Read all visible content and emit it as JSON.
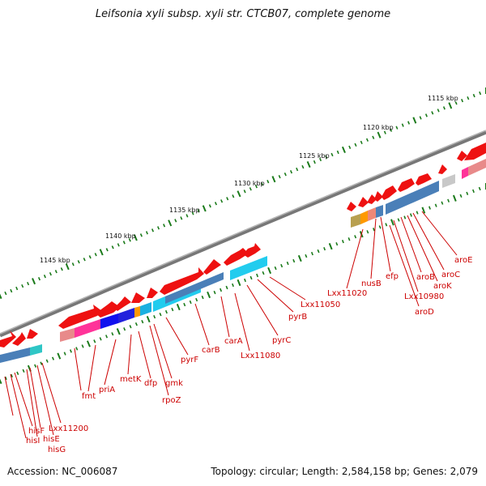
{
  "title": "Leifsonia xyli subsp. xyli str. CTCB07, complete genome",
  "footer": {
    "accession": "Accession: NC_006087",
    "summary": "Topology: circular; Length: 2,584,158 bp; Genes: 2,079"
  },
  "colors": {
    "backbone": "#8a8a8a",
    "tick": "#1a7a1a",
    "gene_arrow": "#ee1111",
    "gene_label": "#cc0000",
    "label_line": "#cc0000"
  },
  "scale_labels": [
    "1115 kbp",
    "1120 kbp",
    "1125 kbp",
    "1130 kbp",
    "1135 kbp",
    "1140 kbp",
    "1145 kbp"
  ],
  "gene_labels": [
    "aroE",
    "aroC",
    "aroK",
    "aroB",
    "Lxx10980",
    "aroD",
    "efp",
    "nusB",
    "Lxx11020",
    "Lxx11050",
    "pyrB",
    "pyrC",
    "Lxx11080",
    "carA",
    "carB",
    "pyrF",
    "gmk",
    "rpoZ",
    "dfp",
    "metK",
    "priA",
    "fmt",
    "Lxx11200",
    "hisE",
    "hisF",
    "hisI",
    "hisG"
  ]
}
